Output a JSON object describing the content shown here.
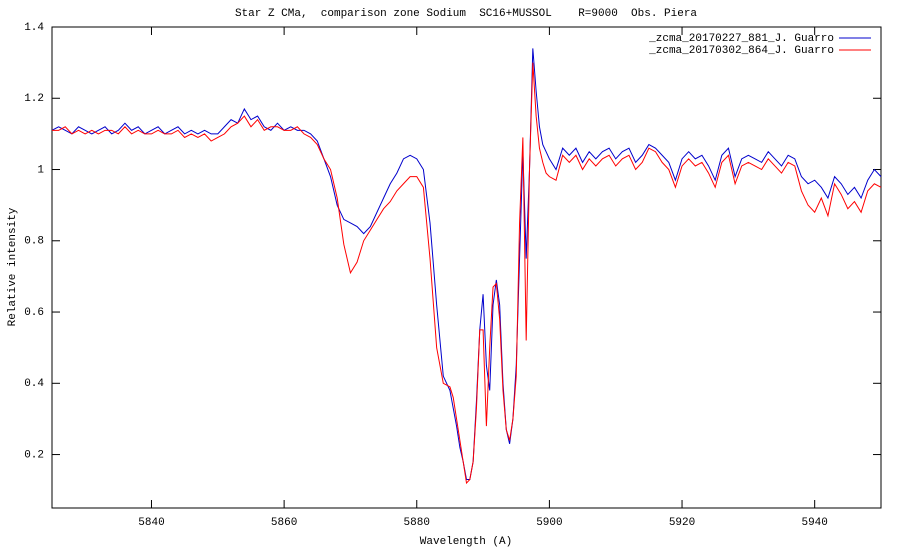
{
  "chart_data": {
    "type": "line",
    "title": "Star Z CMa,  comparison zone Sodium  SC16+MUSSOL    R=9000  Obs. Piera",
    "x_label": "Wavelength (A)",
    "y_label": "Relative intensity",
    "legend": "top-right",
    "xlim": [
      5825,
      5950
    ],
    "ylim": [
      0.05,
      1.4
    ],
    "xticks": [
      5840,
      5860,
      5880,
      5900,
      5920,
      5940
    ],
    "yticks": [
      0.2,
      0.4,
      0.6,
      0.8,
      1,
      1.2,
      1.4
    ],
    "x": [
      5825,
      5826,
      5827,
      5828,
      5829,
      5830,
      5831,
      5832,
      5833,
      5834,
      5835,
      5836,
      5837,
      5838,
      5839,
      5840,
      5841,
      5842,
      5843,
      5844,
      5845,
      5846,
      5847,
      5848,
      5849,
      5850,
      5851,
      5852,
      5853,
      5854,
      5855,
      5856,
      5857,
      5858,
      5859,
      5860,
      5861,
      5862,
      5863,
      5864,
      5865,
      5866,
      5867,
      5868,
      5869,
      5870,
      5871,
      5872,
      5873,
      5874,
      5875,
      5876,
      5877,
      5878,
      5879,
      5880,
      5881,
      5882,
      5883,
      5884,
      5885,
      5885.5,
      5886,
      5886.5,
      5887,
      5887.5,
      5888,
      5888.5,
      5889,
      5889.5,
      5890,
      5890.5,
      5891,
      5891.5,
      5892,
      5892.5,
      5893,
      5893.5,
      5894,
      5894.5,
      5895,
      5895.5,
      5896,
      5896.5,
      5897,
      5897.5,
      5898,
      5898.5,
      5899,
      5899.5,
      5900,
      5901,
      5902,
      5903,
      5904,
      5905,
      5906,
      5907,
      5908,
      5909,
      5910,
      5911,
      5912,
      5913,
      5914,
      5915,
      5916,
      5917,
      5918,
      5919,
      5920,
      5921,
      5922,
      5923,
      5924,
      5925,
      5926,
      5927,
      5928,
      5929,
      5930,
      5931,
      5932,
      5933,
      5934,
      5935,
      5936,
      5937,
      5938,
      5939,
      5940,
      5941,
      5942,
      5943,
      5944,
      5945,
      5946,
      5947,
      5948,
      5949,
      5950
    ],
    "series": [
      {
        "name": "_zcma_20170227_881_J. Guarro",
        "color": "#0000cc",
        "values": [
          1.11,
          1.12,
          1.11,
          1.1,
          1.12,
          1.11,
          1.1,
          1.11,
          1.12,
          1.1,
          1.11,
          1.13,
          1.11,
          1.12,
          1.1,
          1.11,
          1.12,
          1.1,
          1.11,
          1.12,
          1.1,
          1.11,
          1.1,
          1.11,
          1.1,
          1.1,
          1.12,
          1.14,
          1.13,
          1.17,
          1.14,
          1.15,
          1.12,
          1.11,
          1.13,
          1.11,
          1.12,
          1.11,
          1.11,
          1.1,
          1.08,
          1.03,
          0.98,
          0.9,
          0.86,
          0.85,
          0.84,
          0.82,
          0.84,
          0.88,
          0.92,
          0.96,
          0.99,
          1.03,
          1.04,
          1.03,
          1.0,
          0.85,
          0.62,
          0.42,
          0.38,
          0.33,
          0.28,
          0.22,
          0.18,
          0.13,
          0.13,
          0.18,
          0.35,
          0.55,
          0.65,
          0.45,
          0.38,
          0.62,
          0.69,
          0.62,
          0.4,
          0.27,
          0.23,
          0.3,
          0.45,
          0.75,
          1.05,
          0.75,
          1.0,
          1.34,
          1.22,
          1.12,
          1.07,
          1.05,
          1.03,
          1.0,
          1.06,
          1.04,
          1.06,
          1.02,
          1.05,
          1.03,
          1.05,
          1.06,
          1.03,
          1.05,
          1.06,
          1.02,
          1.04,
          1.07,
          1.06,
          1.04,
          1.02,
          0.97,
          1.03,
          1.05,
          1.03,
          1.04,
          1.01,
          0.97,
          1.04,
          1.06,
          0.98,
          1.03,
          1.04,
          1.03,
          1.02,
          1.05,
          1.03,
          1.01,
          1.04,
          1.03,
          0.98,
          0.96,
          0.97,
          0.95,
          0.92,
          0.98,
          0.96,
          0.93,
          0.95,
          0.92,
          0.97,
          1.0,
          0.98
        ]
      },
      {
        "name": "_zcma_20170302_864_J. Guarro",
        "color": "#ff0000",
        "values": [
          1.11,
          1.11,
          1.12,
          1.1,
          1.11,
          1.1,
          1.11,
          1.1,
          1.11,
          1.11,
          1.1,
          1.12,
          1.1,
          1.11,
          1.1,
          1.1,
          1.11,
          1.1,
          1.1,
          1.11,
          1.09,
          1.1,
          1.09,
          1.1,
          1.08,
          1.09,
          1.1,
          1.12,
          1.13,
          1.15,
          1.12,
          1.14,
          1.11,
          1.12,
          1.12,
          1.11,
          1.11,
          1.12,
          1.1,
          1.09,
          1.07,
          1.03,
          1.0,
          0.92,
          0.79,
          0.71,
          0.74,
          0.8,
          0.83,
          0.86,
          0.89,
          0.91,
          0.94,
          0.96,
          0.98,
          0.98,
          0.95,
          0.75,
          0.5,
          0.4,
          0.39,
          0.36,
          0.3,
          0.24,
          0.18,
          0.12,
          0.13,
          0.18,
          0.33,
          0.55,
          0.55,
          0.28,
          0.5,
          0.67,
          0.68,
          0.58,
          0.38,
          0.27,
          0.24,
          0.3,
          0.42,
          0.85,
          1.09,
          0.52,
          1.0,
          1.3,
          1.15,
          1.06,
          1.02,
          0.99,
          0.98,
          0.97,
          1.04,
          1.02,
          1.04,
          1.0,
          1.03,
          1.01,
          1.03,
          1.04,
          1.01,
          1.03,
          1.04,
          1.0,
          1.02,
          1.06,
          1.05,
          1.02,
          1.0,
          0.95,
          1.01,
          1.03,
          1.01,
          1.02,
          0.99,
          0.95,
          1.02,
          1.04,
          0.96,
          1.01,
          1.02,
          1.01,
          1.0,
          1.03,
          1.01,
          0.99,
          1.02,
          1.01,
          0.94,
          0.9,
          0.88,
          0.92,
          0.87,
          0.96,
          0.93,
          0.89,
          0.91,
          0.88,
          0.94,
          0.96,
          0.95
        ]
      }
    ]
  }
}
